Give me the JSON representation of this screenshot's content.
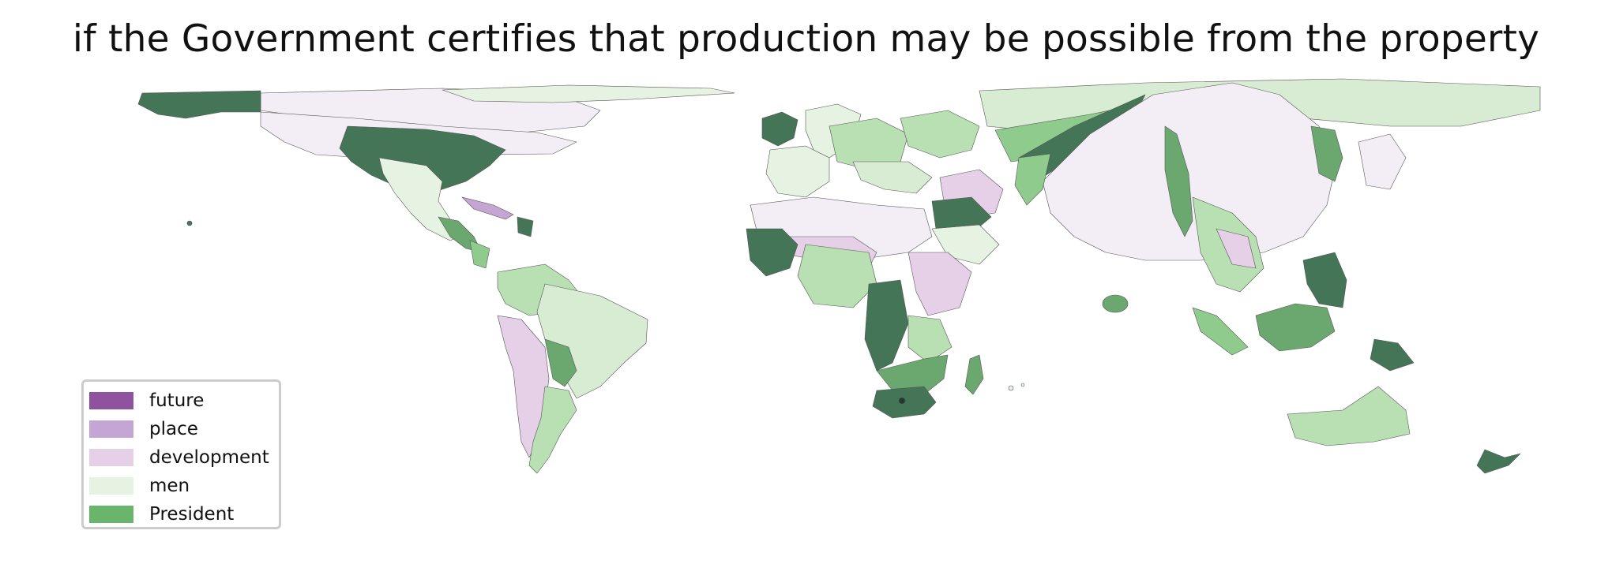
{
  "title": "if the Government certifies that production may be possible from the property",
  "legend": {
    "items": [
      {
        "label": "future",
        "color": "#8e529e"
      },
      {
        "label": "place",
        "color": "#c5a5d3"
      },
      {
        "label": "development",
        "color": "#e6d0e8"
      },
      {
        "label": "men",
        "color": "#e6f3e3"
      },
      {
        "label": "President",
        "color": "#69b56b"
      }
    ]
  },
  "palette": {
    "future": "#8e529e",
    "place": "#c5a5d3",
    "development": "#e6d0e8",
    "development_light": "#f3eef6",
    "men": "#e6f3e3",
    "men_mid": "#d7ecd2",
    "light_green": "#b9e0b3",
    "mid_green": "#8fcb8d",
    "President": "#69b56b",
    "dark_green": "#6aa86f",
    "darkest_green": "#447556",
    "outline": "#555555"
  }
}
